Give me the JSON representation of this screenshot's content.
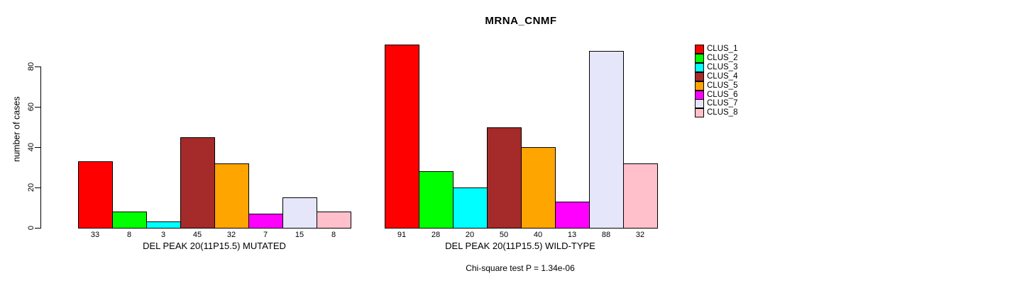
{
  "chart_data": {
    "type": "bar",
    "title": "MRNA_CNMF",
    "ylabel": "number of cases",
    "ylim": [
      0,
      91
    ],
    "yticks": [
      0,
      20,
      40,
      60,
      80
    ],
    "grid": false,
    "legend_position": "right",
    "legend": [
      {
        "label": "CLUS_1",
        "color": "#FF0000"
      },
      {
        "label": "CLUS_2",
        "color": "#00FF00"
      },
      {
        "label": "CLUS_3",
        "color": "#00FFFF"
      },
      {
        "label": "CLUS_4",
        "color": "#A52A2A"
      },
      {
        "label": "CLUS_5",
        "color": "#FFA500"
      },
      {
        "label": "CLUS_6",
        "color": "#FF00FF"
      },
      {
        "label": "CLUS_7",
        "color": "#E6E6FA"
      },
      {
        "label": "CLUS_8",
        "color": "#FFC0CB"
      }
    ],
    "panels": [
      {
        "xlabel": "DEL PEAK 20(11P15.5) MUTATED",
        "values": [
          33,
          8,
          3,
          45,
          32,
          7,
          15,
          8
        ]
      },
      {
        "xlabel": "DEL PEAK 20(11P15.5) WILD-TYPE",
        "values": [
          91,
          28,
          20,
          50,
          40,
          13,
          88,
          32
        ]
      }
    ],
    "annotation": "Chi-square test P = 1.34e-06"
  }
}
